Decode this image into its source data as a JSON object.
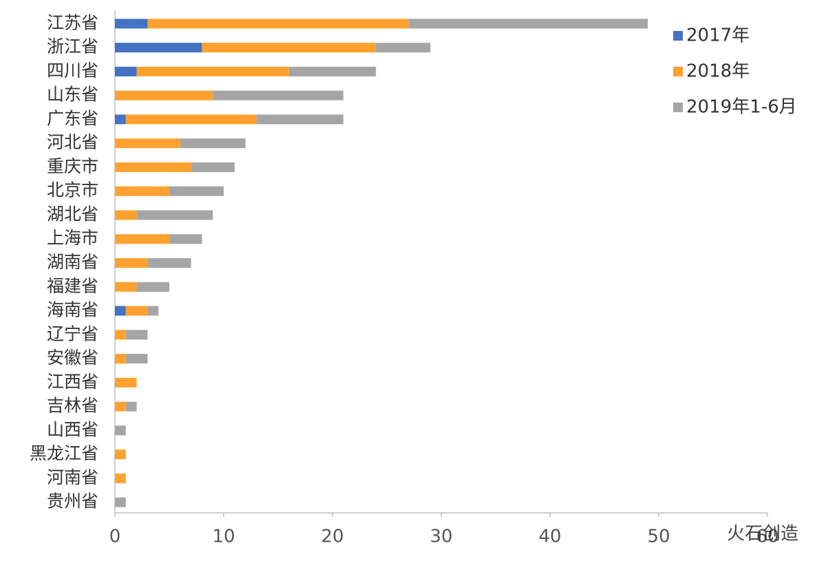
{
  "chart_data": {
    "type": "stacked-bar-horizontal",
    "categories": [
      "江苏省",
      "浙江省",
      "四川省",
      "山东省",
      "广东省",
      "河北省",
      "重庆市",
      "北京市",
      "湖北省",
      "上海市",
      "湖南省",
      "福建省",
      "海南省",
      "辽宁省",
      "安徽省",
      "江西省",
      "吉林省",
      "山西省",
      "黑龙江省",
      "河南省",
      "贵州省"
    ],
    "series": [
      {
        "name": "2017年",
        "color": "#4472c4",
        "values": [
          3,
          8,
          2,
          0,
          1,
          0,
          0,
          0,
          0,
          0,
          0,
          0,
          1,
          0,
          0,
          0,
          0,
          0,
          0,
          0,
          0
        ]
      },
      {
        "name": "2018年",
        "color": "#ffa12f",
        "values": [
          24,
          16,
          14,
          9,
          12,
          6,
          7,
          5,
          2,
          5,
          3,
          2,
          2,
          1,
          1,
          2,
          1,
          0,
          1,
          1,
          0
        ]
      },
      {
        "name": "2019年1-6月",
        "color": "#a5a5a5",
        "values": [
          22,
          5,
          8,
          12,
          8,
          6,
          4,
          5,
          7,
          3,
          4,
          3,
          1,
          2,
          2,
          0,
          1,
          1,
          0,
          0,
          1
        ]
      }
    ],
    "xlim": [
      0,
      60
    ],
    "xticks": [
      0,
      10,
      20,
      30,
      40,
      50,
      60
    ],
    "legend": "top-right",
    "watermark": "火石创造"
  }
}
